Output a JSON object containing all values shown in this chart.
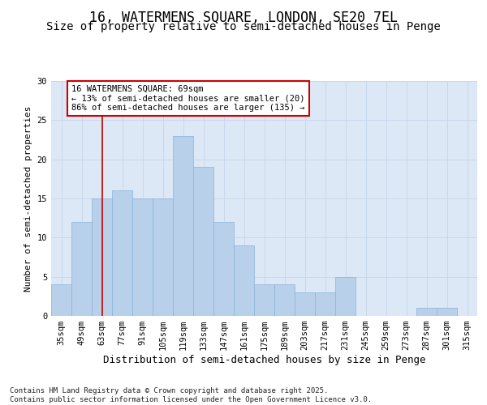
{
  "title_line1": "16, WATERMENS SQUARE, LONDON, SE20 7EL",
  "title_line2": "Size of property relative to semi-detached houses in Penge",
  "xlabel": "Distribution of semi-detached houses by size in Penge",
  "ylabel": "Number of semi-detached properties",
  "bar_values": [
    4,
    12,
    15,
    16,
    15,
    15,
    23,
    19,
    12,
    9,
    4,
    4,
    3,
    3,
    5,
    0,
    0,
    0,
    1,
    1,
    0
  ],
  "categories": [
    "35sqm",
    "49sqm",
    "63sqm",
    "77sqm",
    "91sqm",
    "105sqm",
    "119sqm",
    "133sqm",
    "147sqm",
    "161sqm",
    "175sqm",
    "189sqm",
    "203sqm",
    "217sqm",
    "231sqm",
    "245sqm",
    "259sqm",
    "273sqm",
    "287sqm",
    "301sqm",
    "315sqm"
  ],
  "bar_color": "#b8d0ea",
  "bar_edge_color": "#8ab4d8",
  "grid_color": "#c8d8ec",
  "background_color": "#dce8f5",
  "vline_x": 2,
  "vline_color": "#cc0000",
  "annotation_box_text": "16 WATERMENS SQUARE: 69sqm\n← 13% of semi-detached houses are smaller (20)\n86% of semi-detached houses are larger (135) →",
  "annotation_box_color": "#cc0000",
  "ylim": [
    0,
    30
  ],
  "yticks": [
    0,
    5,
    10,
    15,
    20,
    25,
    30
  ],
  "footnote": "Contains HM Land Registry data © Crown copyright and database right 2025.\nContains public sector information licensed under the Open Government Licence v3.0.",
  "title_fontsize": 12,
  "subtitle_fontsize": 10,
  "xlabel_fontsize": 9,
  "ylabel_fontsize": 8,
  "tick_fontsize": 7.5,
  "annotation_fontsize": 7.5,
  "footnote_fontsize": 6.5
}
